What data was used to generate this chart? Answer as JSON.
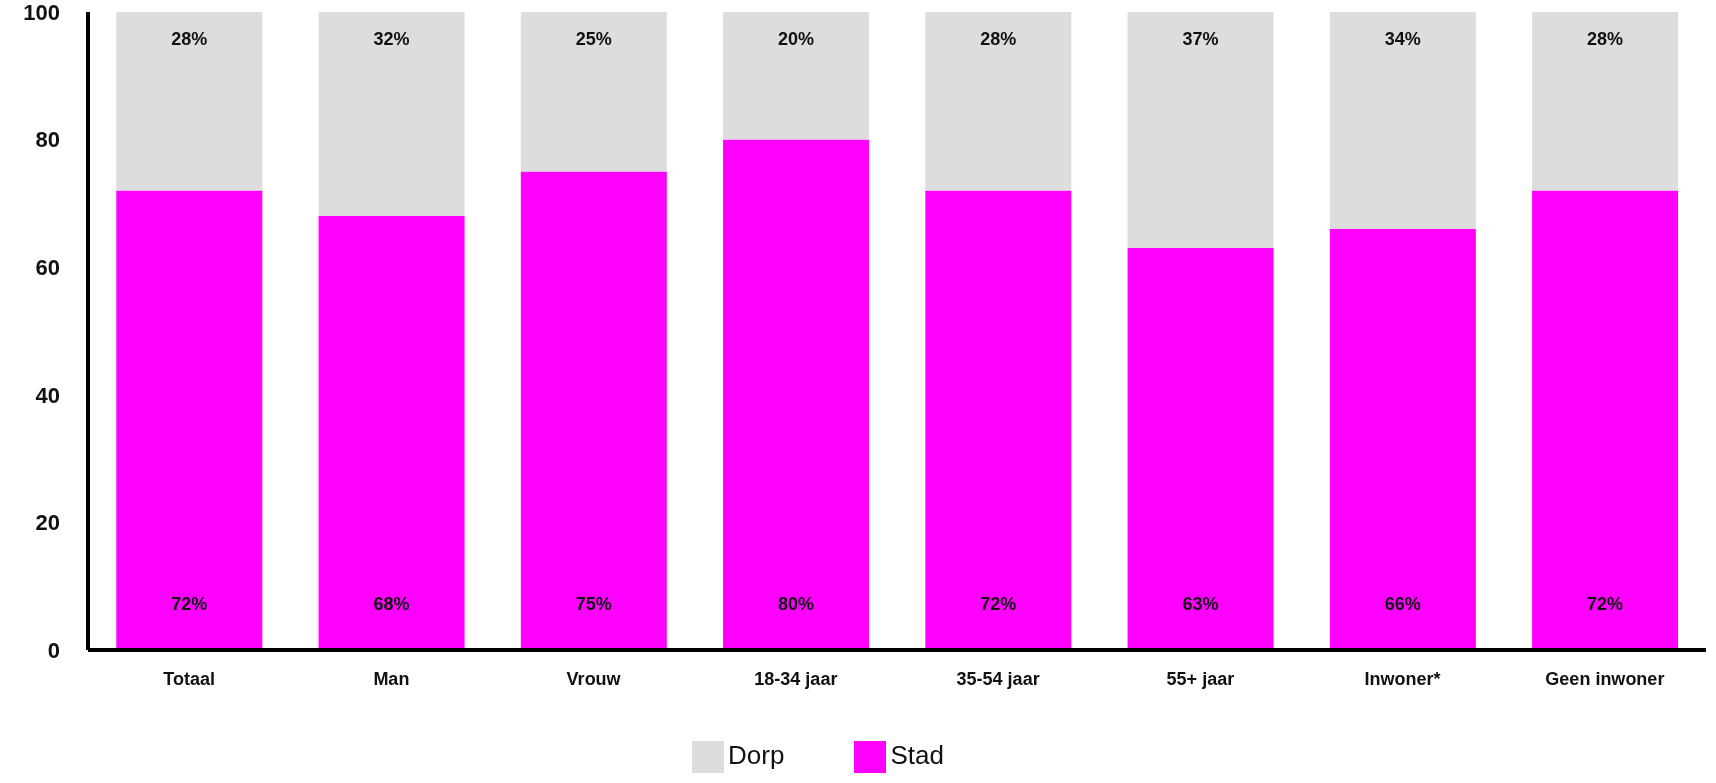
{
  "chart_data": {
    "type": "bar",
    "stacked": true,
    "categories": [
      "Totaal",
      "Man",
      "Vrouw",
      "18-34 jaar",
      "35-54 jaar",
      "55+ jaar",
      "Inwoner*",
      "Geen inwoner"
    ],
    "series": [
      {
        "name": "Stad",
        "color": "#ff00ff",
        "values": [
          72,
          68,
          75,
          80,
          72,
          63,
          66,
          72
        ],
        "value_labels": [
          "72%",
          "68%",
          "75%",
          "80%",
          "72%",
          "63%",
          "66%",
          "72%"
        ]
      },
      {
        "name": "Dorp",
        "color": "#dddddd",
        "values": [
          28,
          32,
          25,
          20,
          28,
          37,
          34,
          28
        ],
        "value_labels": [
          "28%",
          "32%",
          "25%",
          "20%",
          "28%",
          "37%",
          "34%",
          "28%"
        ]
      }
    ],
    "ylim": [
      0,
      100
    ],
    "yticks": [
      0,
      20,
      40,
      60,
      80,
      100
    ],
    "grid": false,
    "legend": "bottom"
  }
}
